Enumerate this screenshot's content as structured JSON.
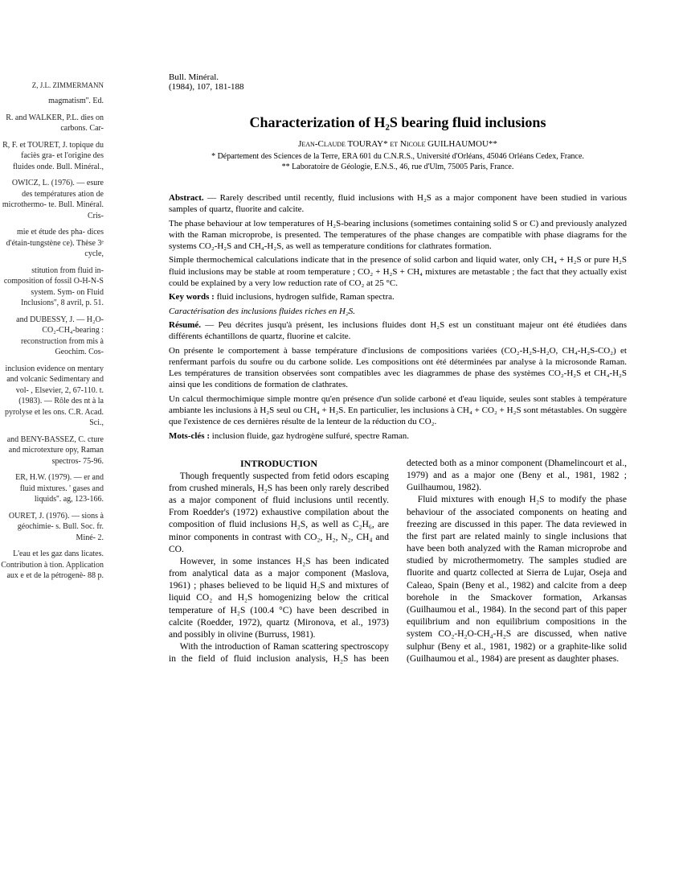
{
  "leftRemnant": {
    "author": "Z, J.L. ZIMMERMANN",
    "blocks": [
      "magmatism''. Ed.",
      "R. and WALKER, P.L. dies on carbons. Car-",
      "R, F. et TOURET, J. topique du faciès gra- et l'origine des fluides onde. Bull. Minéral.,",
      "OWICZ, L. (1976). — esure des températures ation de microthermo- te. Bull. Minéral. Cris-",
      "mie et étude des pha- dices d'étain-tungstène ce). Thèse 3ᵉ cycle,",
      "stitution from fluid in- composition of fossil O-H-N-S system. Sym- on Fluid Inclusions'', 8 avril, p. 51.",
      "and DUBESSY, J. — H₂O-CO₂-CH₄-bearing : reconstruction from mis à Geochim. Cos-",
      "inclusion evidence on mentary and volcanic Sedimentary and vol- , Elsevier, 2, 67-110. t. (1983). — Rôle des nt à la pyrolyse et les ons. C.R. Acad. Sci.,",
      "and BENY-BASSEZ, C. cture and microtexture opy, Raman spectros- 75-96.",
      "ER, H.W. (1979). — er and fluid mixtures. ' gases and liquids''. ag, 123-166.",
      "OURET, J. (1976). — sions à géochimie- s. Bull. Soc. fr. Miné- 2.",
      "L'eau et les gaz dans licates. Contribution à tion. Application aux e et de la pétrogenè- 88 p."
    ]
  },
  "journal": {
    "line1": "Bull. Minéral.",
    "line2": "(1984), 107, 181-188"
  },
  "title": "Characterization of H₂S bearing fluid inclusions",
  "authors": "Jean-Claude TOURAY* et Nicole GUILHAUMOU**",
  "affil1": "* Département des Sciences de la Terre, ERA 601 du C.N.R.S., Université d'Orléans, 45046 Orléans Cedex, France.",
  "affil2": "** Laboratoire de Géologie, E.N.S., 46, rue d'Ulm, 75005 Paris, France.",
  "abstract": {
    "lead": "Abstract.",
    "p1": " — Rarely described until recently, fluid inclusions with H₂S as a major component have been studied in various samples of quartz, fluorite and calcite.",
    "p2": "The phase behaviour at low temperatures of H₂S-bearing inclusions (sometimes containing solid S or C) and previously analyzed with the Raman microprobe, is presented. The temperatures of the phase changes are compatible with phase diagrams for the systems CO₂-H₂S and CH₄-H₂S, as well as temperature conditions for clathrates formation.",
    "p3": "Simple thermochemical calculations indicate that in the presence of solid carbon and liquid water, only CH₄ + H₂S or pure H₂S fluid inclusions may be stable at room temperature ; CO₂ + H₂S + CH₄ mixtures are metastable ; the fact that they actually exist could be explained by a very low reduction rate of CO₂ at 25 °C.",
    "kwLead": "Key words :",
    "kw": " fluid inclusions, hydrogen sulfide, Raman spectra."
  },
  "resume": {
    "title": "Caractérisation des inclusions fluides riches en H₂S.",
    "lead": "Résumé.",
    "p1": " — Peu décrites jusqu'à présent, les inclusions fluides dont H₂S est un constituant majeur ont été étudiées dans différents échantillons de quartz, fluorine et calcite.",
    "p2": "On présente le comportement à basse température d'inclusions de compositions variées (CO₂-H₂S-H₂O, CH₄-H₂S-CO₂) et renfermant parfois du soufre ou du carbone solide. Les compositions ont été déterminées par analyse à la microsonde Raman. Les températures de transition observées sont compatibles avec les diagrammes de phase des systèmes CO₂-H₂S et CH₄-H₂S ainsi que les conditions de formation de clathrates.",
    "p3": "Un calcul thermochimique simple montre qu'en présence d'un solide carboné et d'eau liquide, seules sont stables à température ambiante les inclusions à H₂S seul ou CH₄ + H₂S. En particulier, les inclusions à CH₄ + CO₂ + H₂S sont métastables. On suggère que l'existence de ces dernières résulte de la lenteur de la réduction du CO₂.",
    "kwLead": "Mots-clés :",
    "kw": " inclusion fluide, gaz hydrogène sulfuré, spectre Raman."
  },
  "body": {
    "introHead": "INTRODUCTION",
    "p1": "Though frequently suspected from fetid odors escaping from crushed minerals, H₂S has been only rarely described as a major component of fluid inclusions until recently. From Roedder's (1972) exhaustive compilation about the composition of fluid inclusions H₂S, as well as C₂H₆, are minor components in contrast with CO₂, H₂, N₂, CH₄ and CO.",
    "p2": "However, in some instances H₂S has been indicated from analytical data as a major component (Maslova, 1961) ; phases believed to be liquid H₂S and mixtures of liquid CO₂ and H₂S homogenizing below the critical temperature of H₂S (100.4 °C) have been described in calcite (Roedder, 1972), quartz (Mironova, et al., 1973) and possibly in olivine (Burruss, 1981).",
    "p3": "With the introduction of Raman scattering spectroscopy in the field of fluid inclusion analysis, H₂S has been detected both as a minor component (Dhamelincourt et al., 1979) and as a major one (Beny et al., 1981, 1982 ; Guilhaumou, 1982).",
    "p4": "Fluid mixtures with enough H₂S to modify the phase behaviour of the associated components on heating and freezing are discussed in this paper. The data reviewed in the first part are related mainly to single inclusions that have been both analyzed with the Raman microprobe and studied by microthermometry. The samples studied are fluorite and quartz collected at Sierra de Lujar, Oseja and Caleao, Spain (Beny et al., 1982) and calcite from a deep borehole in the Smackover formation, Arkansas (Guilhaumou et al., 1984). In the second part of this paper equilibrium and non equilibrium compositions in the system CO₂-H₂O-CH₄-H₂S are discussed, when native sulphur (Beny et al., 1981, 1982) or a graphite-like solid (Guilhaumou et al., 1984) are present as daughter phases."
  }
}
